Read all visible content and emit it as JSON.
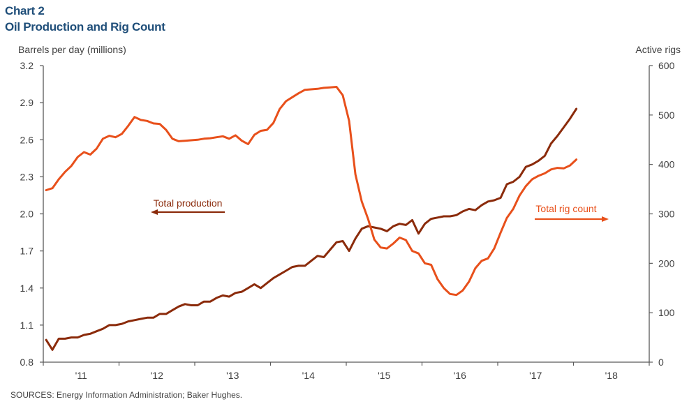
{
  "header": {
    "chart_number": "Chart 2",
    "title": "Oil Production and Rig Count"
  },
  "footer": {
    "sources": "SOURCES: Energy Information  Administration; Baker Hughes."
  },
  "colors": {
    "production": "#8b2b0b",
    "rig_count": "#e8501b",
    "title": "#1f4e79",
    "axis": "#595959",
    "text": "#404040"
  },
  "chart_data": {
    "type": "line",
    "title": "Oil Production and Rig Count",
    "xlabel": "",
    "ylabel": "Barrels per day (millions)",
    "y2label": "Active rigs",
    "x_tick_labels": [
      "'11",
      "'12",
      "'13",
      "'14",
      "'15",
      "'16",
      "'17",
      "'18"
    ],
    "x_range": [
      "2011-01",
      "2019-01"
    ],
    "x_start": "2011-01",
    "x_frequency": "monthly",
    "ylim": [
      0.8,
      3.2
    ],
    "y_ticks": [
      "0.8",
      "1.1",
      "1.4",
      "1.7",
      "2.0",
      "2.3",
      "2.6",
      "2.9",
      "3.2"
    ],
    "y2lim": [
      0,
      600
    ],
    "y2_ticks": [
      "0",
      "100",
      "200",
      "300",
      "400",
      "500",
      "600"
    ],
    "grid": false,
    "legend": "inline annotations",
    "annotations": [
      {
        "text": "Total production",
        "series": "Total production",
        "arrow": "left",
        "position": "center-left"
      },
      {
        "text": "Total rig count",
        "series": "Total rig count",
        "arrow": "right",
        "position": "center-right"
      }
    ],
    "series": [
      {
        "name": "Total production",
        "axis": "left",
        "values": [
          0.98,
          0.9,
          0.99,
          0.99,
          1.0,
          1.0,
          1.02,
          1.03,
          1.05,
          1.07,
          1.1,
          1.1,
          1.11,
          1.13,
          1.14,
          1.15,
          1.16,
          1.16,
          1.19,
          1.19,
          1.22,
          1.25,
          1.27,
          1.26,
          1.26,
          1.29,
          1.29,
          1.32,
          1.34,
          1.33,
          1.36,
          1.37,
          1.4,
          1.43,
          1.4,
          1.44,
          1.48,
          1.51,
          1.54,
          1.57,
          1.58,
          1.58,
          1.62,
          1.66,
          1.65,
          1.71,
          1.77,
          1.78,
          1.7,
          1.8,
          1.88,
          1.9,
          1.89,
          1.88,
          1.86,
          1.9,
          1.92,
          1.91,
          1.95,
          1.84,
          1.92,
          1.96,
          1.97,
          1.98,
          1.98,
          1.99,
          2.02,
          2.04,
          2.03,
          2.07,
          2.1,
          2.11,
          2.13,
          2.24,
          2.26,
          2.3,
          2.38,
          2.4,
          2.43,
          2.47,
          2.57,
          2.63,
          2.7,
          2.77,
          2.85
        ]
      },
      {
        "name": "Total rig count",
        "axis": "right",
        "values": [
          348,
          352,
          370,
          385,
          397,
          415,
          425,
          420,
          432,
          452,
          458,
          455,
          462,
          478,
          496,
          490,
          488,
          483,
          482,
          470,
          452,
          447,
          448,
          449,
          450,
          452,
          453,
          455,
          457,
          452,
          459,
          448,
          441,
          460,
          468,
          470,
          484,
          512,
          528,
          536,
          544,
          551,
          552,
          553,
          555,
          556,
          557,
          540,
          488,
          380,
          325,
          290,
          248,
          232,
          230,
          240,
          252,
          247,
          225,
          220,
          200,
          197,
          168,
          150,
          138,
          136,
          145,
          163,
          190,
          205,
          210,
          230,
          262,
          292,
          310,
          337,
          356,
          370,
          377,
          382,
          390,
          393,
          392,
          398,
          410
        ]
      }
    ]
  }
}
